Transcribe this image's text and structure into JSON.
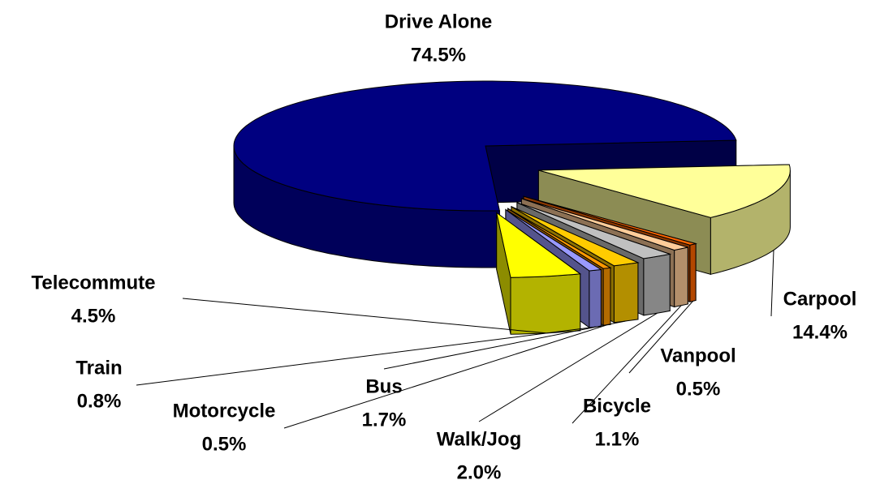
{
  "chart_data": {
    "type": "pie3d",
    "categories": [
      "Drive Alone",
      "Carpool",
      "Vanpool",
      "Bicycle",
      "Walk/Jog",
      "Bus",
      "Motorcycle",
      "Train",
      "Telecommute"
    ],
    "values": [
      74.5,
      14.4,
      0.5,
      1.1,
      2.0,
      1.7,
      0.5,
      0.8,
      4.5
    ],
    "value_labels": [
      "74.5%",
      "14.4%",
      "0.5%",
      "1.1%",
      "2.0%",
      "1.7%",
      "0.5%",
      "0.8%",
      "4.5%"
    ],
    "colors": [
      "#000080",
      "#ffff99",
      "#ff6600",
      "#ffcc99",
      "#c0c0c0",
      "#ffcc00",
      "#ff9900",
      "#9999ff",
      "#ffff00"
    ]
  }
}
